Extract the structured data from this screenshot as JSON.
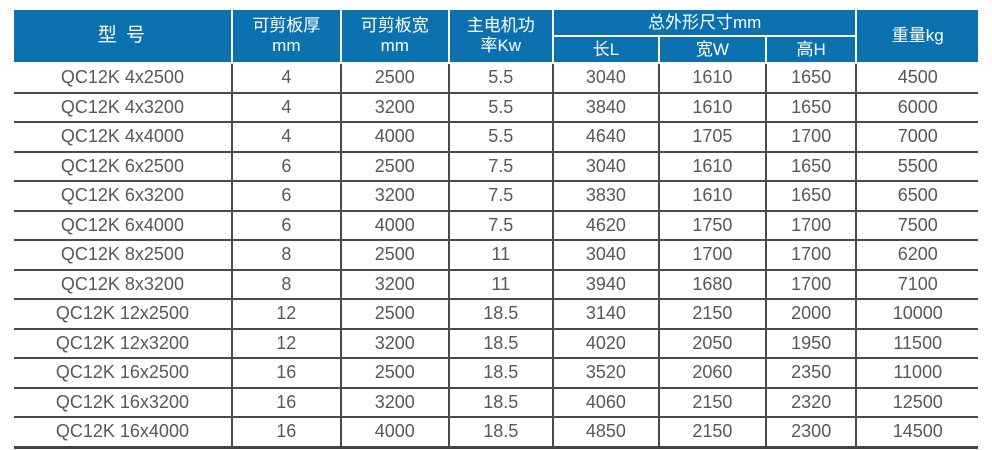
{
  "colors": {
    "header_bg": "#0C72AF",
    "header_text": "#FFFFFF",
    "body_text": "#57585B",
    "grid_line": "#4A4A4D",
    "page_bg": "#FFFFFF"
  },
  "table": {
    "header": {
      "model": "型 号",
      "thickness_line1": "可剪板厚",
      "thickness_line2": "mm",
      "plate_width_line1": "可剪板宽",
      "plate_width_line2": "mm",
      "power_line1": "主电机功",
      "power_line2": "率Kw",
      "dimensions_group": "总外形尺寸mm",
      "dim_length": "长L",
      "dim_width": "宽W",
      "dim_height": "高H",
      "weight": "重量kg"
    },
    "columns_order": [
      "model",
      "thickness_mm",
      "plate_width_mm",
      "power_kw",
      "length_L_mm",
      "width_W_mm",
      "height_H_mm",
      "weight_kg"
    ],
    "rows": [
      [
        "QC12K 4x2500",
        "4",
        "2500",
        "5.5",
        "3040",
        "1610",
        "1650",
        "4500"
      ],
      [
        "QC12K 4x3200",
        "4",
        "3200",
        "5.5",
        "3840",
        "1610",
        "1650",
        "6000"
      ],
      [
        "QC12K 4x4000",
        "4",
        "4000",
        "5.5",
        "4640",
        "1705",
        "1700",
        "7000"
      ],
      [
        "QC12K 6x2500",
        "6",
        "2500",
        "7.5",
        "3040",
        "1610",
        "1650",
        "5500"
      ],
      [
        "QC12K 6x3200",
        "6",
        "3200",
        "7.5",
        "3830",
        "1610",
        "1650",
        "6500"
      ],
      [
        "QC12K 6x4000",
        "6",
        "4000",
        "7.5",
        "4620",
        "1750",
        "1700",
        "7500"
      ],
      [
        "QC12K 8x2500",
        "8",
        "2500",
        "11",
        "3040",
        "1700",
        "1700",
        "6200"
      ],
      [
        "QC12K 8x3200",
        "8",
        "3200",
        "11",
        "3940",
        "1680",
        "1700",
        "7100"
      ],
      [
        "QC12K 12x2500",
        "12",
        "2500",
        "18.5",
        "3140",
        "2150",
        "2000",
        "10000"
      ],
      [
        "QC12K 12x3200",
        "12",
        "3200",
        "18.5",
        "4020",
        "2050",
        "1950",
        "11500"
      ],
      [
        "QC12K 16x2500",
        "16",
        "2500",
        "18.5",
        "3520",
        "2060",
        "2350",
        "11000"
      ],
      [
        "QC12K 16x3200",
        "16",
        "3200",
        "18.5",
        "4060",
        "2150",
        "2320",
        "12500"
      ],
      [
        "QC12K 16x4000",
        "16",
        "4000",
        "18.5",
        "4850",
        "2150",
        "2300",
        "14500"
      ]
    ]
  }
}
